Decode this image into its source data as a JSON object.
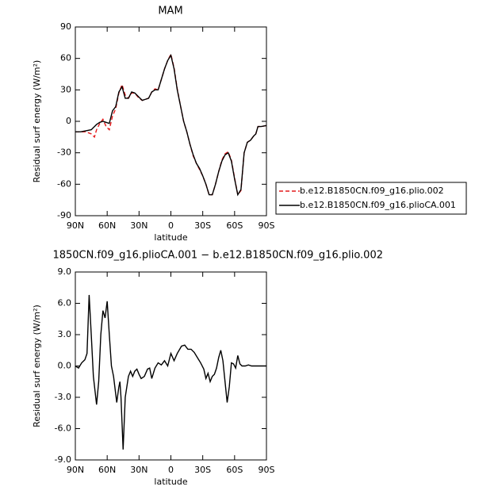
{
  "chart_data": [
    {
      "type": "line",
      "title": "MAM",
      "x_label": "latitude",
      "y_label": "Residual surf energy (W/m²)",
      "x": [
        90,
        85,
        80,
        75,
        72,
        70,
        67,
        64,
        61,
        58,
        55,
        52,
        49,
        46,
        43,
        40,
        37,
        34,
        30,
        27,
        24,
        21,
        18,
        15,
        12,
        9,
        6,
        3,
        0,
        -3,
        -6,
        -9,
        -12,
        -15,
        -18,
        -21,
        -24,
        -27,
        -30,
        -33,
        -36,
        -39,
        -42,
        -45,
        -48,
        -51,
        -54,
        -57,
        -60,
        -63,
        -66,
        -69,
        -72,
        -75,
        -78,
        -80,
        -82,
        -85,
        -90
      ],
      "series": [
        {
          "name": "b.e12.B1850CN.f09_g16.plio.002",
          "color": "#e41a1c",
          "linestyle": "dashed",
          "values": [
            -10,
            -10,
            -10,
            -12,
            -15,
            -8,
            -2,
            2,
            -5,
            -8,
            5,
            12,
            27,
            35,
            25,
            22,
            27,
            27,
            22,
            20,
            21,
            22,
            28,
            31,
            30,
            40,
            50,
            58,
            64,
            51,
            31,
            15,
            0,
            -10,
            -22,
            -33,
            -40,
            -46,
            -52,
            -60,
            -70,
            -70,
            -60,
            -48,
            -37,
            -31,
            -29,
            -37,
            -54,
            -70,
            -66,
            -30,
            -20,
            -18,
            -14,
            -12,
            -5,
            -5,
            -4
          ]
        },
        {
          "name": "b.e12.B1850CN.f09_g16.plioCA.001",
          "color": "#000000",
          "linestyle": "solid",
          "values": [
            -10,
            -10,
            -9,
            -8,
            -5,
            -3,
            -1,
            0,
            -1,
            -2,
            10,
            14,
            28,
            33,
            22,
            22,
            28,
            27,
            23,
            20,
            21,
            22,
            28,
            30,
            30,
            40,
            50,
            58,
            63,
            50,
            30,
            15,
            0,
            -10,
            -22,
            -32,
            -40,
            -45,
            -52,
            -60,
            -70,
            -70,
            -60,
            -48,
            -38,
            -32,
            -30,
            -38,
            -55,
            -70,
            -65,
            -30,
            -20,
            -18,
            -14,
            -12,
            -5,
            -5,
            -4
          ]
        }
      ],
      "xlim": [
        90,
        -90
      ],
      "xticks": [
        {
          "value": 90,
          "label": "90N"
        },
        {
          "value": 60,
          "label": "60N"
        },
        {
          "value": 30,
          "label": "30N"
        },
        0,
        {
          "value": -30,
          "label": "30S"
        },
        {
          "value": -60,
          "label": "60S"
        },
        {
          "value": -90,
          "label": "90S"
        }
      ],
      "ylim": [
        -90,
        90
      ],
      "yticks": [
        90,
        60,
        30,
        0,
        -30,
        -60,
        -90
      ],
      "legend": "right"
    },
    {
      "type": "line",
      "title": "1850CN.f09_g16.plioCA.001 − b.e12.B1850CN.f09_g16.plio.002",
      "x_label": "latitude",
      "y_label": "Residual surf energy (W/m²)",
      "x": [
        90,
        87,
        84,
        81,
        79,
        78,
        77,
        75,
        73,
        70,
        68,
        66,
        64,
        62,
        60,
        58,
        56,
        54,
        51,
        49,
        48,
        47,
        45,
        43,
        40,
        38,
        36,
        34,
        32,
        30,
        28,
        25,
        22,
        20,
        18,
        15,
        12,
        9,
        6,
        3,
        0,
        -3,
        -6,
        -10,
        -13,
        -16,
        -19,
        -22,
        -25,
        -28,
        -31,
        -33,
        -35,
        -37,
        -39,
        -41,
        -43,
        -45,
        -47,
        -49,
        -51,
        -53,
        -55,
        -57,
        -59,
        -61,
        -63,
        -65,
        -67,
        -70,
        -73,
        -76,
        -80,
        -85,
        -90
      ],
      "series": [
        {
          "color": "#000000",
          "linestyle": "solid",
          "values": [
            0,
            -0.2,
            0.3,
            0.6,
            1.2,
            4,
            6.8,
            3,
            -1,
            -3.7,
            -1.5,
            3,
            5.3,
            4.6,
            6.2,
            3,
            0,
            -1,
            -3.5,
            -2,
            -1.5,
            -3,
            -8,
            -3,
            -1,
            -0.5,
            -1,
            -0.5,
            -0.3,
            -0.8,
            -1.2,
            -1,
            -0.3,
            -0.2,
            -1.2,
            -0.2,
            0.3,
            0.1,
            0.5,
            0,
            1.2,
            0.5,
            1.2,
            1.9,
            2.0,
            1.6,
            1.6,
            1.3,
            0.8,
            0.3,
            -0.3,
            -1.2,
            -0.7,
            -1.5,
            -1,
            -0.8,
            -0.2,
            0.8,
            1.5,
            0.5,
            -1.5,
            -3.5,
            -2,
            0.3,
            0.2,
            -0.2,
            1.0,
            0.2,
            0,
            0,
            0.1,
            0,
            0,
            0,
            0
          ]
        }
      ],
      "xlim": [
        90,
        -90
      ],
      "xticks": [
        {
          "value": 90,
          "label": "90N"
        },
        {
          "value": 60,
          "label": "60N"
        },
        {
          "value": 30,
          "label": "30N"
        },
        0,
        {
          "value": -30,
          "label": "30S"
        },
        {
          "value": -60,
          "label": "60S"
        },
        {
          "value": -90,
          "label": "90S"
        }
      ],
      "ylim": [
        -9,
        9
      ],
      "yticks": [
        {
          "value": 9,
          "label": "9.0"
        },
        {
          "value": 6,
          "label": "6.0"
        },
        {
          "value": 3,
          "label": "3.0"
        },
        {
          "value": 0,
          "label": "0.0"
        },
        {
          "value": -3,
          "label": "-3.0"
        },
        {
          "value": -6,
          "label": "-6.0"
        },
        {
          "value": -9,
          "label": "-9.0"
        }
      ]
    }
  ]
}
